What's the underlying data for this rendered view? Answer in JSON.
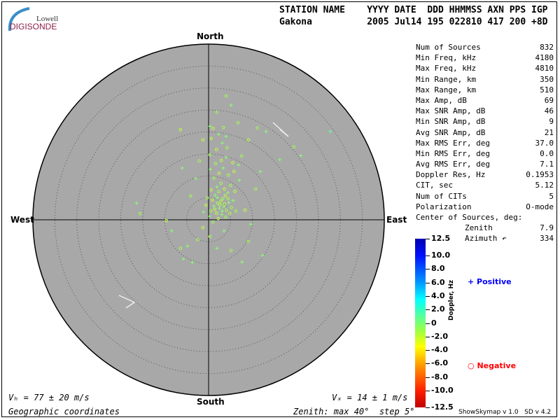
{
  "logo": {
    "line1": "Lowell",
    "line2": "DIGISONDE"
  },
  "header": {
    "labels": "STATION NAME    YYYY DATE  DDD HHMMSS AXN PPS IGP",
    "values": "Gakona          2005 Jul14 195 022810 417 200 +8D"
  },
  "stats": [
    {
      "label": "Num of Sources",
      "value": "832"
    },
    {
      "label": "Min Freq, kHz",
      "value": "4180"
    },
    {
      "label": "Max Freq, kHz",
      "value": "4810"
    },
    {
      "label": "Min Range, km",
      "value": "350"
    },
    {
      "label": "Max Range, km",
      "value": "510"
    },
    {
      "label": "Max Amp, dB",
      "value": "69"
    },
    {
      "label": "Max SNR Amp, dB",
      "value": "46"
    },
    {
      "label": "Min SNR Amp, dB",
      "value": "9"
    },
    {
      "label": "Avg SNR Amp, dB",
      "value": "21"
    },
    {
      "label": "Max RMS Err, deg",
      "value": "37.0"
    },
    {
      "label": "Min RMS Err, deg",
      "value": "0.0"
    },
    {
      "label": "Avg RMS Err, deg",
      "value": "7.1"
    },
    {
      "label": "Doppler Res, Hz",
      "value": "0.1953"
    },
    {
      "label": "CIT, sec",
      "value": "5.12"
    },
    {
      "label": "Num of CITs",
      "value": "5"
    },
    {
      "label": "Polarization",
      "value": "O-mode"
    }
  ],
  "center": {
    "title": "Center of Sources, deg:",
    "zenith_label": "Zenith",
    "zenith": "7.9",
    "azimuth_label": "Azimuth ↶",
    "azimuth": "334"
  },
  "directions": {
    "north": "North",
    "south": "South",
    "east": "East",
    "west": "West"
  },
  "footer": {
    "vh": "Vₕ = 77 ± 20 m/s",
    "vz": "Vₓ = 14 ± 1 m/s",
    "coords": "Geographic coordinates",
    "zenith": "Zenith: max 40°  step 5°",
    "version": "ShowSkymap v 1.0   SD v 4.2"
  },
  "colorbar": {
    "label": "Doppler, Hz",
    "ticks": [
      "12.5",
      "10.0",
      "8.0",
      "6.0",
      "4.0",
      "2.0",
      "0",
      "-2.0",
      "-4.0",
      "-6.0",
      "-8.0",
      "-10.0",
      "-12.5"
    ],
    "range": [
      -12.5,
      12.5
    ]
  },
  "legend": {
    "positive": "Positive",
    "negative": "Negative",
    "positive_color": "#0000ff",
    "negative_color": "#ff0000"
  },
  "colors": {
    "disk": "#a8a8a8",
    "point": "#90ff50"
  },
  "chart_data": {
    "type": "scatter",
    "projection": "polar skymap, zenith angle vs azimuth",
    "zenith_max": 40,
    "zenith_step": 5,
    "axes": "x = east deg, y = north deg, d = Doppler Hz",
    "points": [
      [
        0.5,
        2.0,
        -0.8
      ],
      [
        1.2,
        3.1,
        0.5
      ],
      [
        2.0,
        3.8,
        -0.8
      ],
      [
        2.8,
        4.2,
        -1.2
      ],
      [
        3.5,
        3.0,
        0.5
      ],
      [
        4.1,
        2.2,
        -0.8
      ],
      [
        1.8,
        1.5,
        -1.0
      ],
      [
        2.5,
        2.6,
        0.6
      ],
      [
        3.2,
        4.8,
        -0.8
      ],
      [
        0.9,
        4.5,
        -1.5
      ],
      [
        1.5,
        5.6,
        0.4
      ],
      [
        2.3,
        6.4,
        -0.8
      ],
      [
        3.8,
        5.5,
        -1.0
      ],
      [
        4.6,
        3.9,
        0.5
      ],
      [
        5.2,
        2.8,
        -0.8
      ],
      [
        0.2,
        0.8,
        0.6
      ],
      [
        1.0,
        -0.5,
        -0.8
      ],
      [
        2.2,
        0.3,
        -1.0
      ],
      [
        3.0,
        1.2,
        0.5
      ],
      [
        3.9,
        0.6,
        -0.8
      ],
      [
        4.8,
        1.5,
        -1.2
      ],
      [
        5.6,
        4.4,
        0.5
      ],
      [
        6.2,
        2.0,
        -0.8
      ],
      [
        -0.6,
        3.3,
        -1.0
      ],
      [
        -1.2,
        1.8,
        0.5
      ],
      [
        -0.3,
        5.0,
        -0.8
      ],
      [
        0.6,
        6.8,
        -1.2
      ],
      [
        1.9,
        7.5,
        0.4
      ],
      [
        2.8,
        8.3,
        -0.8
      ],
      [
        3.6,
        7.0,
        -1.0
      ],
      [
        4.4,
        6.2,
        0.5
      ],
      [
        5.0,
        7.8,
        -0.8
      ],
      [
        6.0,
        6.5,
        -1.2
      ],
      [
        7.0,
        9.0,
        0.5
      ],
      [
        1.2,
        9.5,
        -0.8
      ],
      [
        2.4,
        10.6,
        -1.0
      ],
      [
        3.3,
        11.8,
        0.5
      ],
      [
        4.5,
        10.2,
        -0.8
      ],
      [
        5.8,
        11.0,
        -1.0
      ],
      [
        0.4,
        11.5,
        0.6
      ],
      [
        1.6,
        12.8,
        -0.8
      ],
      [
        2.9,
        13.5,
        -1.2
      ],
      [
        4.0,
        14.2,
        0.5
      ],
      [
        0.3,
        14.8,
        -0.8
      ],
      [
        1.8,
        16.0,
        -1.0
      ],
      [
        3.1,
        17.5,
        0.5
      ],
      [
        4.2,
        16.4,
        -0.8
      ],
      [
        5.5,
        13.0,
        -1.2
      ],
      [
        6.8,
        12.5,
        0.5
      ],
      [
        7.5,
        14.5,
        -0.8
      ],
      [
        0.6,
        18.5,
        -1.0
      ],
      [
        2.3,
        19.5,
        0.5
      ],
      [
        3.4,
        21.0,
        -0.8
      ],
      [
        1.0,
        20.8,
        -1.0
      ],
      [
        4.0,
        19.0,
        0.6
      ],
      [
        27.7,
        20.1,
        1.5
      ],
      [
        21.0,
        14.6,
        0.8
      ],
      [
        19.4,
        16.6,
        -0.8
      ],
      [
        16.2,
        13.7,
        0.6
      ],
      [
        11.1,
        20.9,
        -0.8
      ],
      [
        13.1,
        20.1,
        0.5
      ],
      [
        4.0,
        28.2,
        -0.8
      ],
      [
        -6.4,
        20.5,
        -1.0
      ],
      [
        -6.0,
        11.8,
        0.5
      ],
      [
        -16.4,
        3.8,
        0.5
      ],
      [
        -15.6,
        1.4,
        -0.8
      ],
      [
        -9.6,
        -0.2,
        -1.0
      ],
      [
        -8.4,
        -2.5,
        0.5
      ],
      [
        -6.4,
        -6.5,
        -0.8
      ],
      [
        -4.8,
        -6.0,
        0.6
      ],
      [
        -3.7,
        -9.7,
        0.5
      ],
      [
        -2.5,
        -4.5,
        -0.8
      ],
      [
        1.9,
        -6.5,
        0.5
      ],
      [
        5.1,
        -7.0,
        -0.8
      ],
      [
        7.6,
        -9.6,
        0.8
      ],
      [
        12.3,
        -8.1,
        0.5
      ],
      [
        9.1,
        -4.9,
        -0.8
      ],
      [
        9.6,
        -1.0,
        0.5
      ],
      [
        8.3,
        2.2,
        -1.0
      ],
      [
        10.7,
        7.0,
        -0.8
      ],
      [
        11.8,
        11.0,
        0.5
      ],
      [
        0.3,
        -3.8,
        -0.8
      ],
      [
        3.5,
        -2.5,
        0.5
      ],
      [
        -1.3,
        -1.8,
        -1.0
      ],
      [
        -4.1,
        5.4,
        -0.8
      ],
      [
        -2.9,
        9.4,
        0.5
      ],
      [
        -2.1,
        13.4,
        -0.8
      ],
      [
        -1.3,
        18.2,
        -1.0
      ],
      [
        0.3,
        21.3,
        0.5
      ],
      [
        1.9,
        24.5,
        -0.8
      ],
      [
        5.1,
        26.1,
        0.5
      ],
      [
        6.7,
        22.1,
        -0.8
      ],
      [
        9.1,
        18.2,
        -1.0
      ],
      [
        -5.7,
        -8.9,
        0.5
      ],
      [
        2.6,
        3.4,
        -0.8
      ],
      [
        3.1,
        2.0,
        0.5
      ],
      [
        1.4,
        2.4,
        -1.0
      ],
      [
        4.4,
        4.8,
        -0.8
      ],
      [
        2.0,
        5.0,
        0.5
      ],
      [
        3.6,
        3.6,
        -1.0
      ]
    ]
  }
}
